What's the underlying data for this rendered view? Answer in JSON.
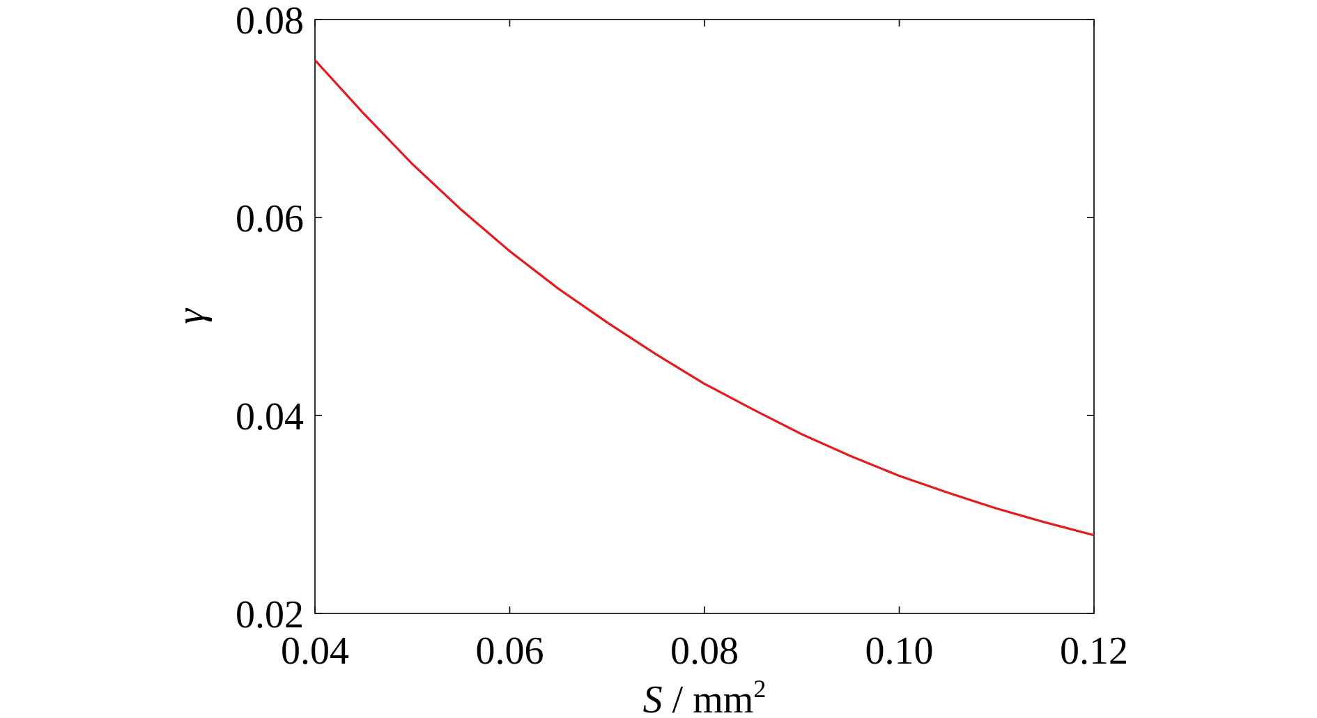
{
  "chart_data": {
    "type": "line",
    "title": "",
    "xlabel": {
      "symbol": "S",
      "separator": " / ",
      "unit": "mm",
      "exponent": "2"
    },
    "ylabel": "γ",
    "xlim": [
      0.04,
      0.12
    ],
    "ylim": [
      0.02,
      0.08
    ],
    "xticks": [
      0.04,
      0.06,
      0.08,
      0.1,
      0.12
    ],
    "xtick_labels": [
      "0.04",
      "0.06",
      "0.08",
      "0.10",
      "0.12"
    ],
    "yticks": [
      0.02,
      0.04,
      0.06,
      0.08
    ],
    "ytick_labels": [
      "0.02",
      "0.04",
      "0.06",
      "0.08"
    ],
    "grid": false,
    "legend": "none",
    "series": [
      {
        "color": "#e41a1c",
        "x": [
          0.04,
          0.045,
          0.05,
          0.055,
          0.06,
          0.065,
          0.07,
          0.075,
          0.08,
          0.085,
          0.09,
          0.095,
          0.1,
          0.105,
          0.11,
          0.115,
          0.12
        ],
        "y": [
          0.0759,
          0.0705,
          0.0654,
          0.0608,
          0.0566,
          0.0528,
          0.0494,
          0.0462,
          0.0432,
          0.0406,
          0.0381,
          0.0359,
          0.0339,
          0.0322,
          0.0306,
          0.0292,
          0.0279
        ]
      }
    ]
  }
}
